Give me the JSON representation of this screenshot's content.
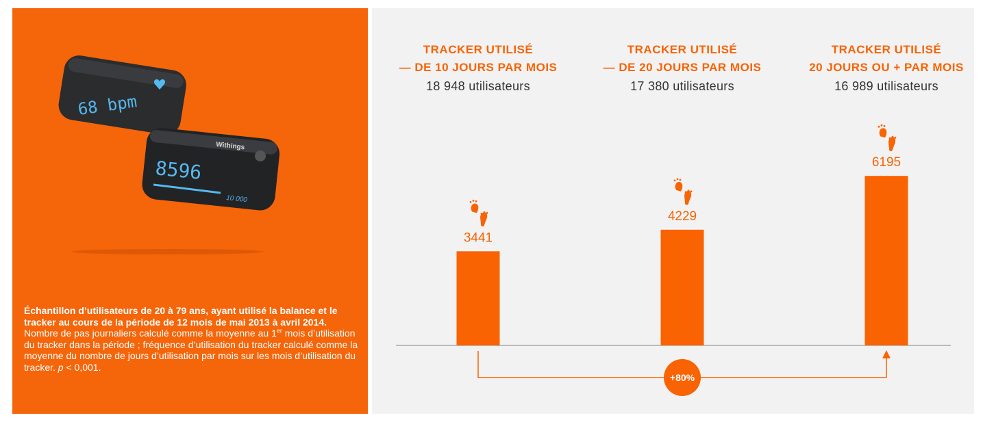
{
  "chart_data": {
    "type": "bar",
    "categories": [
      "TRACKER UTILISÉ\n— DE 10 JOURS PAR MOIS",
      "TRACKER UTILISÉ\n— DE 20 JOURS PAR MOIS",
      "TRACKER UTILISÉ\n20 JOURS OU + PAR MOIS"
    ],
    "users": [
      "18 948 utilisateurs",
      "17 380 utilisateurs",
      "16 989 utilisateurs"
    ],
    "values": [
      3441,
      4229,
      6195
    ],
    "color": "#f96302",
    "annotation": "+80%"
  },
  "device_texts": {
    "heart_rate": "68 bpm",
    "steps": "8596",
    "brand": "Withings",
    "goal": "10 000"
  },
  "footnote": {
    "bold": "Échantillon d’utilisateurs de 20 à 79 ans, ayant utilisé la balance et le tracker au cours de la période de 12 mois de mai 2013 à avril 2014.",
    "text": " Nombre de pas journaliers calculé comme la moyenne au 1",
    "sup": "er",
    "text2": " mois d’utilisation du tracker dans la période ; fréquence d’utilisation du tracker calculé comme la moyenne du nombre de jours d’utilisation par mois sur les mois d’utilisation du tracker. ",
    "p": "p",
    "end": " < 0,001."
  }
}
